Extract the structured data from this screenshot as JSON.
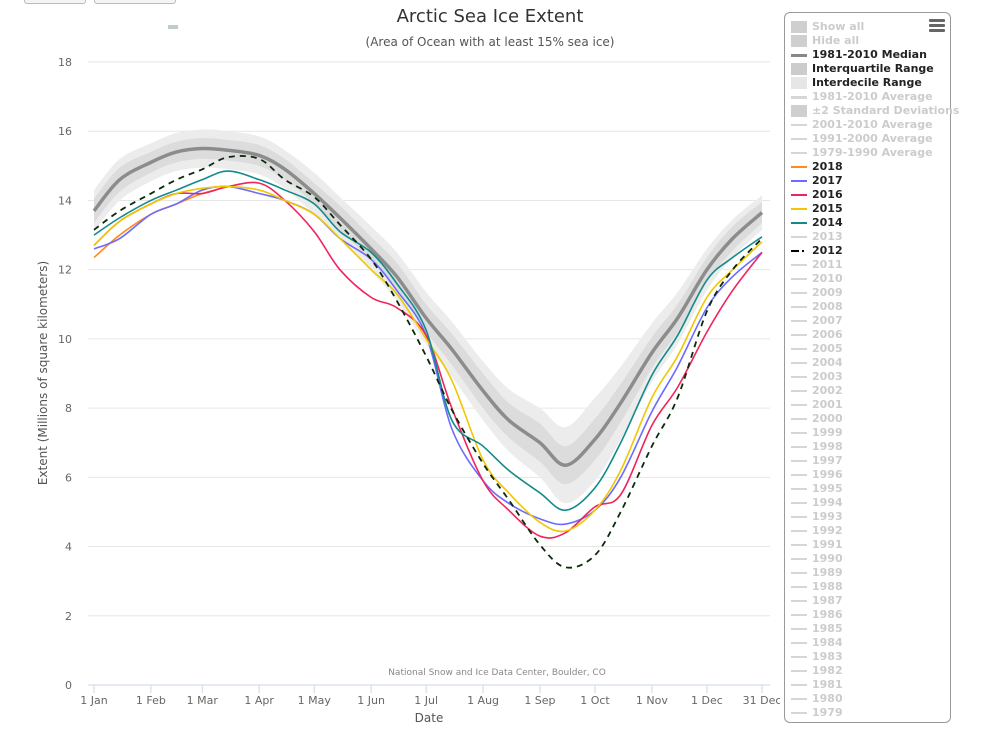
{
  "chart_data": {
    "type": "line",
    "title": "Arctic Sea Ice Extent",
    "subtitle": "(Area of Ocean with at least 15% sea ice)",
    "ylabel": "Extent (Millions of square kilometers)",
    "xlabel": "Date",
    "credits": "National Snow and Ice Data Center, Boulder, CO",
    "ylim": [
      0,
      18
    ],
    "yticks": [
      0,
      2,
      4,
      6,
      8,
      10,
      12,
      14,
      16,
      18
    ],
    "xlim_days": [
      1,
      365
    ],
    "xticks": [
      {
        "day": 1,
        "label": "1 Jan"
      },
      {
        "day": 32,
        "label": "1 Feb"
      },
      {
        "day": 60,
        "label": "1 Mar"
      },
      {
        "day": 91,
        "label": "1 Apr"
      },
      {
        "day": 121,
        "label": "1 May"
      },
      {
        "day": 152,
        "label": "1 Jun"
      },
      {
        "day": 182,
        "label": "1 Jul"
      },
      {
        "day": 213,
        "label": "1 Aug"
      },
      {
        "day": 244,
        "label": "1 Sep"
      },
      {
        "day": 274,
        "label": "1 Oct"
      },
      {
        "day": 305,
        "label": "1 Nov"
      },
      {
        "day": 335,
        "label": "1 Dec"
      },
      {
        "day": 365,
        "label": "31 Dec"
      }
    ],
    "grid": true,
    "legend_placement": "right",
    "x_days": [
      1,
      15,
      32,
      46,
      60,
      74,
      91,
      105,
      121,
      135,
      152,
      166,
      182,
      196,
      213,
      227,
      244,
      258,
      274,
      288,
      305,
      319,
      335,
      349,
      365
    ],
    "median": [
      13.7,
      14.6,
      15.1,
      15.4,
      15.5,
      15.45,
      15.3,
      14.9,
      14.2,
      13.5,
      12.6,
      11.8,
      10.6,
      9.7,
      8.5,
      7.65,
      7.0,
      6.35,
      7.1,
      8.15,
      9.6,
      10.6,
      12.0,
      12.9,
      13.65
    ],
    "interquartile_halfwidth": [
      0.35,
      0.35,
      0.3,
      0.3,
      0.3,
      0.3,
      0.3,
      0.3,
      0.3,
      0.35,
      0.35,
      0.4,
      0.4,
      0.45,
      0.5,
      0.5,
      0.55,
      0.55,
      0.6,
      0.55,
      0.45,
      0.4,
      0.35,
      0.35,
      0.3
    ],
    "interdecile_halfwidth": [
      0.6,
      0.6,
      0.55,
      0.55,
      0.55,
      0.55,
      0.55,
      0.55,
      0.6,
      0.6,
      0.65,
      0.7,
      0.75,
      0.8,
      0.85,
      0.9,
      1.0,
      1.1,
      1.2,
      1.05,
      0.85,
      0.75,
      0.6,
      0.55,
      0.5
    ],
    "series": [
      {
        "name": "2018",
        "color": "#ff8a1e",
        "dash": false,
        "values": [
          12.35,
          13.0,
          13.6,
          13.9,
          14.2,
          14.4,
          null,
          null,
          null,
          null,
          null,
          null,
          null,
          null,
          null,
          null,
          null,
          null,
          null,
          null,
          null,
          null,
          null,
          null,
          null
        ]
      },
      {
        "name": "2017",
        "color": "#6b6bff",
        "dash": false,
        "values": [
          12.6,
          12.9,
          13.6,
          13.9,
          14.3,
          14.4,
          14.2,
          14.0,
          13.6,
          12.9,
          12.3,
          11.4,
          10.1,
          7.4,
          5.9,
          5.25,
          4.8,
          4.65,
          5.05,
          6.0,
          7.9,
          9.2,
          10.9,
          11.8,
          12.5
        ]
      },
      {
        "name": "2016",
        "color": "#f0245c",
        "dash": false,
        "values": [
          12.7,
          13.4,
          13.9,
          14.2,
          14.2,
          14.4,
          14.5,
          14.0,
          13.1,
          12.0,
          11.2,
          10.9,
          10.1,
          8.0,
          5.9,
          5.05,
          4.3,
          4.4,
          5.15,
          5.5,
          7.5,
          8.6,
          10.2,
          11.4,
          12.5
        ]
      },
      {
        "name": "2015",
        "color": "#f0c800",
        "dash": false,
        "values": [
          12.7,
          13.4,
          13.9,
          14.2,
          14.35,
          14.4,
          14.3,
          14.0,
          13.6,
          12.9,
          12.0,
          11.3,
          10.0,
          8.8,
          6.5,
          5.55,
          4.7,
          4.45,
          5.05,
          6.2,
          8.3,
          9.5,
          11.2,
          12.0,
          12.8
        ]
      },
      {
        "name": "2014",
        "color": "#138a8a",
        "dash": false,
        "values": [
          13.0,
          13.5,
          14.0,
          14.3,
          14.6,
          14.85,
          14.6,
          14.3,
          13.9,
          13.1,
          12.5,
          11.6,
          10.25,
          7.65,
          6.9,
          6.2,
          5.55,
          5.05,
          5.7,
          7.0,
          8.95,
          10.1,
          11.7,
          12.35,
          12.95
        ]
      },
      {
        "name": "2012",
        "color": "#0b2a0b",
        "dash": true,
        "values": [
          13.15,
          13.7,
          14.2,
          14.6,
          14.9,
          15.25,
          15.2,
          14.6,
          14.1,
          13.3,
          12.3,
          11.1,
          9.5,
          7.95,
          6.4,
          5.35,
          4.05,
          3.4,
          3.75,
          5.0,
          6.9,
          8.3,
          10.8,
          12.0,
          12.9
        ]
      }
    ]
  },
  "legend": {
    "items": [
      {
        "label": "Show all",
        "kind": "box",
        "active": false
      },
      {
        "label": "Hide all",
        "kind": "box",
        "active": false
      },
      {
        "label": "1981-2010 Median",
        "kind": "thickline",
        "color": "#888888",
        "active": true
      },
      {
        "label": "Interquartile Range",
        "kind": "box",
        "color": "#cccccc",
        "active": true
      },
      {
        "label": "Interdecile Range",
        "kind": "box",
        "color": "#e6e6e6",
        "active": true
      },
      {
        "label": "1981-2010 Average",
        "kind": "thickline",
        "active": false
      },
      {
        "label": "±2 Standard Deviations",
        "kind": "box",
        "active": false
      },
      {
        "label": "2001-2010 Average",
        "kind": "line",
        "active": false
      },
      {
        "label": "1991-2000 Average",
        "kind": "line",
        "active": false
      },
      {
        "label": "1979-1990 Average",
        "kind": "line",
        "active": false
      },
      {
        "label": "2018",
        "kind": "line",
        "color": "#ff8a1e",
        "active": true
      },
      {
        "label": "2017",
        "kind": "line",
        "color": "#6b6bff",
        "active": true
      },
      {
        "label": "2016",
        "kind": "line",
        "color": "#f0245c",
        "active": true
      },
      {
        "label": "2015",
        "kind": "line",
        "color": "#f0c800",
        "active": true
      },
      {
        "label": "2014",
        "kind": "line",
        "color": "#138a8a",
        "active": true
      },
      {
        "label": "2013",
        "kind": "line",
        "active": false
      },
      {
        "label": "2012",
        "kind": "dash",
        "color": "#000000",
        "active": true
      },
      {
        "label": "2011",
        "kind": "line",
        "active": false
      },
      {
        "label": "2010",
        "kind": "line",
        "active": false
      },
      {
        "label": "2009",
        "kind": "line",
        "active": false
      },
      {
        "label": "2008",
        "kind": "line",
        "active": false
      },
      {
        "label": "2007",
        "kind": "line",
        "active": false
      },
      {
        "label": "2006",
        "kind": "line",
        "active": false
      },
      {
        "label": "2005",
        "kind": "line",
        "active": false
      },
      {
        "label": "2004",
        "kind": "line",
        "active": false
      },
      {
        "label": "2003",
        "kind": "line",
        "active": false
      },
      {
        "label": "2002",
        "kind": "line",
        "active": false
      },
      {
        "label": "2001",
        "kind": "line",
        "active": false
      },
      {
        "label": "2000",
        "kind": "line",
        "active": false
      },
      {
        "label": "1999",
        "kind": "line",
        "active": false
      },
      {
        "label": "1998",
        "kind": "line",
        "active": false
      },
      {
        "label": "1997",
        "kind": "line",
        "active": false
      },
      {
        "label": "1996",
        "kind": "line",
        "active": false
      },
      {
        "label": "1995",
        "kind": "line",
        "active": false
      },
      {
        "label": "1994",
        "kind": "line",
        "active": false
      },
      {
        "label": "1993",
        "kind": "line",
        "active": false
      },
      {
        "label": "1992",
        "kind": "line",
        "active": false
      },
      {
        "label": "1991",
        "kind": "line",
        "active": false
      },
      {
        "label": "1990",
        "kind": "line",
        "active": false
      },
      {
        "label": "1989",
        "kind": "line",
        "active": false
      },
      {
        "label": "1988",
        "kind": "line",
        "active": false
      },
      {
        "label": "1987",
        "kind": "line",
        "active": false
      },
      {
        "label": "1986",
        "kind": "line",
        "active": false
      },
      {
        "label": "1985",
        "kind": "line",
        "active": false
      },
      {
        "label": "1984",
        "kind": "line",
        "active": false
      },
      {
        "label": "1983",
        "kind": "line",
        "active": false
      },
      {
        "label": "1982",
        "kind": "line",
        "active": false
      },
      {
        "label": "1981",
        "kind": "line",
        "active": false
      },
      {
        "label": "1980",
        "kind": "line",
        "active": false
      },
      {
        "label": "1979",
        "kind": "line",
        "active": false
      }
    ]
  }
}
